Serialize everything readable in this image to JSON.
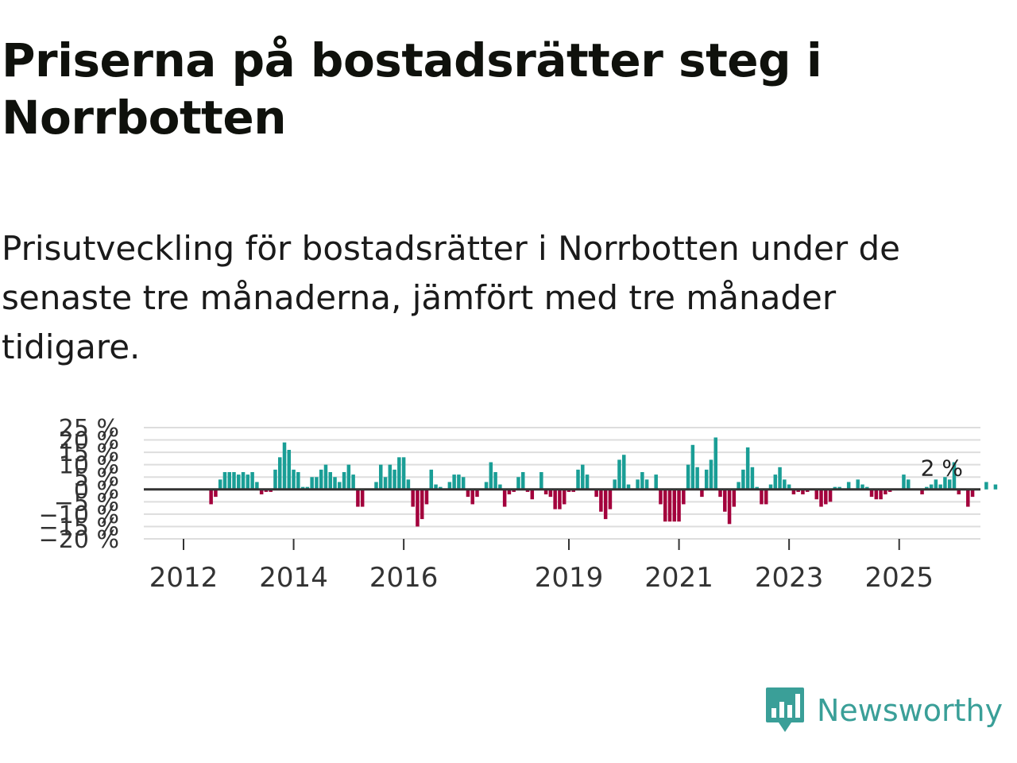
{
  "title": "Priserna på bostadsrätter steg i Norrbotten",
  "subtitle": "Prisutveckling för bostadsrätter i Norrbotten under de senaste tre månaderna, jämfört med tre månader tidigare.",
  "colors": {
    "positive": "#1a9e96",
    "negative": "#a3003c",
    "zero_line": "#333333",
    "grid": "#dddddd",
    "brand": "#3a9f98"
  },
  "brand": {
    "name": "Newsworthy",
    "icon": "chart-bubble-icon"
  },
  "chart_data": {
    "type": "bar",
    "title": "Priserna på bostadsrätter steg i Norrbotten",
    "xlabel": "",
    "ylabel": "",
    "ylim": [
      -20,
      25
    ],
    "y_ticks": [
      -20,
      -15,
      -10,
      -5,
      0,
      5,
      10,
      15,
      20,
      25
    ],
    "y_tick_labels": [
      "−20 %",
      "−15 %",
      "−10 %",
      "−5 %",
      "0 %",
      "5 %",
      "10 %",
      "15 %",
      "20 %",
      "25 %"
    ],
    "x_ticks": [
      2012,
      2014,
      2016,
      2019,
      2021,
      2023,
      2025
    ],
    "x_tick_labels": [
      "2012",
      "2014",
      "2016",
      "2019",
      "2021",
      "2023",
      "2025"
    ],
    "start": 2011.5,
    "step": 0.08333,
    "values": [
      0,
      0,
      0,
      0,
      0,
      0,
      0,
      0,
      0,
      0,
      0,
      0,
      -6,
      -3,
      4,
      7,
      7,
      7,
      6,
      7,
      6,
      7,
      3,
      -2,
      -1,
      -1,
      8,
      13,
      19,
      16,
      8,
      7,
      1,
      1,
      5,
      5,
      8,
      10,
      7,
      5,
      3,
      7,
      10,
      6,
      -7,
      -7,
      0,
      0,
      3,
      10,
      5,
      10,
      8,
      13,
      13,
      4,
      -7,
      -15,
      -12,
      -6,
      8,
      2,
      1,
      0,
      3,
      6,
      6,
      5,
      -3,
      -6,
      -3,
      0,
      3,
      11,
      7,
      2,
      -7,
      -2,
      -1,
      5,
      7,
      -1,
      -4,
      0,
      7,
      -2,
      -3,
      -8,
      -8,
      -6,
      -1,
      -1,
      8,
      10,
      6,
      0,
      -3,
      -9,
      -12,
      -8,
      4,
      12,
      14,
      2,
      0,
      4,
      7,
      4,
      0,
      6,
      -6,
      -13,
      -13,
      -13,
      -13,
      -6,
      10,
      18,
      9,
      -3,
      8,
      12,
      21,
      -3,
      -9,
      -14,
      -7,
      3,
      8,
      17,
      9,
      1,
      -6,
      -6,
      2,
      6,
      9,
      4,
      2,
      -2,
      -1,
      -2,
      -1,
      0,
      -4,
      -7,
      -6,
      -5,
      1,
      1,
      0,
      3,
      0,
      4,
      2,
      1,
      -3,
      -4,
      -4,
      -2,
      -1,
      0,
      0,
      6,
      4,
      0,
      0,
      -2,
      1,
      2,
      4,
      2,
      5,
      4,
      11,
      -2,
      0,
      -7,
      -3,
      0,
      0,
      3,
      0,
      2,
      0,
      0,
      0,
      0,
      0,
      0,
      0,
      0
    ],
    "last_value": 2,
    "last_value_label": "2 %"
  }
}
